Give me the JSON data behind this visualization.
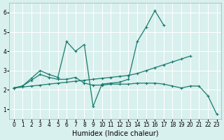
{
  "xlabel": "Humidex (Indice chaleur)",
  "xlim": [
    -0.5,
    23.5
  ],
  "ylim": [
    0.5,
    6.5
  ],
  "xticks": [
    0,
    1,
    2,
    3,
    4,
    5,
    6,
    7,
    8,
    9,
    10,
    11,
    12,
    13,
    14,
    15,
    16,
    17,
    18,
    19,
    20,
    21,
    22,
    23
  ],
  "yticks": [
    1,
    2,
    3,
    4,
    5,
    6
  ],
  "bg_color": "#d8f0ee",
  "line_color": "#1a7a6e",
  "grid_color": "#ffffff",
  "lines": [
    {
      "x": [
        0,
        1,
        2,
        3,
        4,
        5,
        6,
        7,
        8,
        9,
        10,
        11,
        12,
        13,
        14,
        15,
        16,
        17
      ],
      "y": [
        2.1,
        2.2,
        2.6,
        3.0,
        2.8,
        2.65,
        4.5,
        4.0,
        4.35,
        1.15,
        2.3,
        2.35,
        2.4,
        2.55,
        4.5,
        5.25,
        6.1,
        5.35
      ]
    },
    {
      "x": [
        0,
        1,
        2,
        3,
        4,
        5,
        6,
        7,
        8,
        9,
        10,
        11,
        12,
        13,
        14,
        15,
        16,
        17,
        18,
        19,
        20
      ],
      "y": [
        2.1,
        2.15,
        2.2,
        2.25,
        2.3,
        2.35,
        2.4,
        2.45,
        2.5,
        2.55,
        2.6,
        2.65,
        2.7,
        2.75,
        2.85,
        3.0,
        3.15,
        3.3,
        3.45,
        3.6,
        3.75
      ]
    },
    {
      "x": [
        0,
        1,
        2,
        3,
        4,
        5,
        6,
        7,
        8,
        9,
        10,
        11,
        12,
        13,
        14,
        15,
        16,
        17,
        18,
        19,
        20,
        21,
        22,
        23
      ],
      "y": [
        2.1,
        2.2,
        2.5,
        2.8,
        2.65,
        2.55,
        2.55,
        2.65,
        2.35,
        2.25,
        2.25,
        2.3,
        2.3,
        2.3,
        2.35,
        2.35,
        2.35,
        2.3,
        2.2,
        2.1,
        2.2,
        2.2,
        1.7,
        0.75
      ]
    }
  ],
  "fontsize_label": 7,
  "tick_fontsize": 5.5
}
